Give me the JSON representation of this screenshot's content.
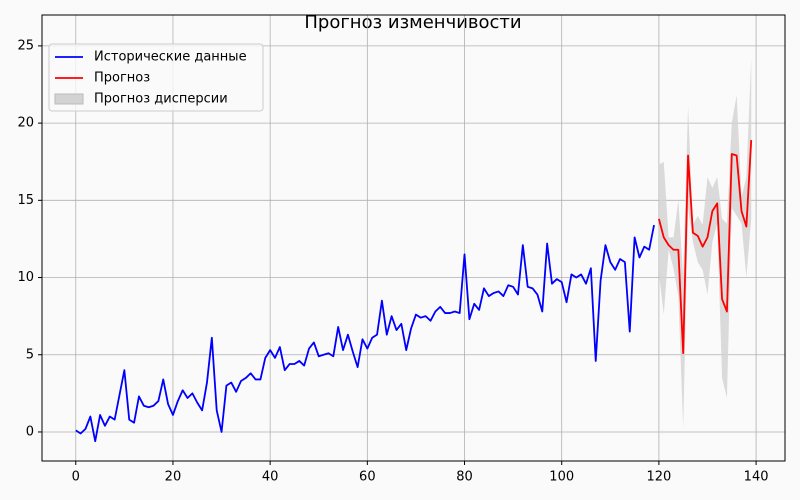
{
  "chart_data": {
    "type": "line",
    "title": "Прогноз изменчивости",
    "xlim": [
      -6.95,
      145.95
    ],
    "ylim": [
      -1.88,
      27.0
    ],
    "xticks": [
      0,
      20,
      40,
      60,
      80,
      100,
      120,
      140
    ],
    "yticks": [
      0,
      5,
      10,
      15,
      20,
      25
    ],
    "grid": true,
    "legend": "upper left",
    "series": [
      {
        "name": "Исторические данные",
        "color": "#0000ff",
        "x": [
          0,
          1,
          2,
          3,
          4,
          5,
          6,
          7,
          8,
          9,
          10,
          11,
          12,
          13,
          14,
          15,
          16,
          17,
          18,
          19,
          20,
          21,
          22,
          23,
          24,
          25,
          26,
          27,
          28,
          29,
          30,
          31,
          32,
          33,
          34,
          35,
          36,
          37,
          38,
          39,
          40,
          41,
          42,
          43,
          44,
          45,
          46,
          47,
          48,
          49,
          50,
          51,
          52,
          53,
          54,
          55,
          56,
          57,
          58,
          59,
          60,
          61,
          62,
          63,
          64,
          65,
          66,
          67,
          68,
          69,
          70,
          71,
          72,
          73,
          74,
          75,
          76,
          77,
          78,
          79,
          80,
          81,
          82,
          83,
          84,
          85,
          86,
          87,
          88,
          89,
          90,
          91,
          92,
          93,
          94,
          95,
          96,
          97,
          98,
          99,
          100,
          101,
          102,
          103,
          104,
          105,
          106,
          107,
          108,
          109,
          110,
          111,
          112,
          113,
          114,
          115,
          116,
          117,
          118,
          119
        ],
        "values": [
          0.1,
          -0.1,
          0.2,
          1.0,
          -0.6,
          1.1,
          0.4,
          1.0,
          0.8,
          2.4,
          4.0,
          0.8,
          0.6,
          2.3,
          1.7,
          1.6,
          1.7,
          2.0,
          3.4,
          1.8,
          1.1,
          2.0,
          2.7,
          2.2,
          2.5,
          1.9,
          1.4,
          3.2,
          6.1,
          1.4,
          0.0,
          3.0,
          3.2,
          2.6,
          3.3,
          3.5,
          3.8,
          3.4,
          3.4,
          4.8,
          5.3,
          4.8,
          5.5,
          4.0,
          4.4,
          4.4,
          4.6,
          4.3,
          5.4,
          5.8,
          4.9,
          5.0,
          5.1,
          4.9,
          6.8,
          5.3,
          6.3,
          5.2,
          4.2,
          6.0,
          5.4,
          6.1,
          6.3,
          8.5,
          6.3,
          7.5,
          6.6,
          7.0,
          5.3,
          6.7,
          7.6,
          7.4,
          7.5,
          7.2,
          7.8,
          8.1,
          7.7,
          7.7,
          7.8,
          7.7,
          11.5,
          7.3,
          8.3,
          7.9,
          9.3,
          8.8,
          9.0,
          9.1,
          8.8,
          9.5,
          9.4,
          8.9,
          12.1,
          9.4,
          9.3,
          8.9,
          7.8,
          12.2,
          9.6,
          9.9,
          9.7,
          8.4,
          10.2,
          10.0,
          10.2,
          9.6,
          10.6,
          4.6,
          9.8,
          12.1,
          11.0,
          10.5,
          11.2,
          11.0,
          6.5,
          12.6,
          11.3,
          12.0,
          11.8,
          13.4
        ]
      },
      {
        "name": "Прогноз",
        "color": "#ff0000",
        "x": [
          120,
          121,
          122,
          123,
          124,
          125,
          126,
          127,
          128,
          129,
          130,
          131,
          132,
          133,
          134,
          135,
          136,
          137,
          138,
          139
        ],
        "values": [
          13.8,
          12.6,
          12.1,
          11.8,
          11.8,
          5.1,
          17.9,
          12.9,
          12.7,
          12.0,
          12.6,
          14.3,
          14.8,
          8.6,
          7.8,
          18.0,
          17.9,
          14.3,
          13.3,
          18.9
        ]
      }
    ],
    "band": {
      "name": "Прогноз дисперсии",
      "color": "#d3d3d3",
      "x": [
        120,
        121,
        122,
        123,
        124,
        125,
        126,
        127,
        128,
        129,
        130,
        131,
        132,
        133,
        134,
        135,
        136,
        137,
        138,
        139
      ],
      "lower": [
        10.3,
        7.6,
        11.8,
        10.6,
        8.8,
        0.3,
        14.5,
        12.3,
        11.0,
        10.5,
        8.9,
        12.3,
        13.5,
        3.5,
        2.2,
        14.5,
        14.0,
        13.5,
        10.0,
        13.8
      ],
      "upper": [
        17.3,
        17.5,
        12.6,
        12.6,
        15.0,
        10.0,
        21.1,
        13.4,
        14.0,
        13.4,
        16.5,
        15.8,
        16.5,
        13.8,
        13.5,
        20.0,
        21.8,
        15.2,
        16.5,
        24.2
      ]
    }
  }
}
